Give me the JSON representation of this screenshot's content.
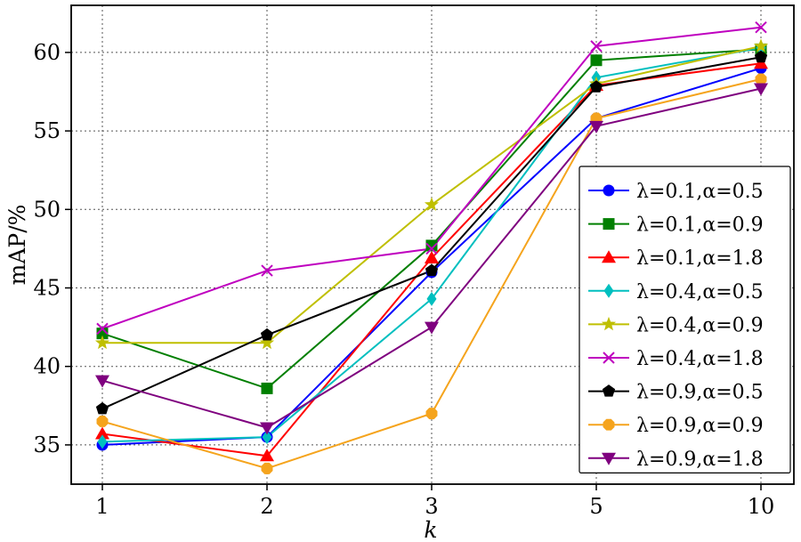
{
  "chart_data": {
    "type": "line",
    "x": [
      "1",
      "2",
      "3",
      "5",
      "10"
    ],
    "xlabel": "k",
    "ylabel": "mAP/%",
    "ylim": [
      32.5,
      63
    ],
    "yticks": [
      35,
      40,
      45,
      50,
      55,
      60
    ],
    "grid": true,
    "legend_position": "right",
    "series": [
      {
        "name": "λ=0.1,α=0.5",
        "color": "#0000ff",
        "marker": "circle",
        "values": [
          35.0,
          35.5,
          46.0,
          55.8,
          59.0
        ]
      },
      {
        "name": "λ=0.1,α=0.9",
        "color": "#007f00",
        "marker": "square",
        "values": [
          42.1,
          38.6,
          47.7,
          59.5,
          60.2
        ]
      },
      {
        "name": "λ=0.1,α=1.8",
        "color": "#ff0000",
        "marker": "triangle-up",
        "values": [
          35.7,
          34.3,
          46.9,
          57.9,
          59.3
        ]
      },
      {
        "name": "λ=0.4,α=0.5",
        "color": "#00bfbf",
        "marker": "diamond",
        "values": [
          35.2,
          35.5,
          44.3,
          58.4,
          60.3
        ]
      },
      {
        "name": "λ=0.4,α=0.9",
        "color": "#bfbf00",
        "marker": "star",
        "values": [
          41.5,
          41.5,
          50.3,
          58.0,
          60.4
        ]
      },
      {
        "name": "λ=0.4,α=1.8",
        "color": "#bf00bf",
        "marker": "x",
        "values": [
          42.4,
          46.1,
          47.5,
          60.4,
          61.6
        ]
      },
      {
        "name": "λ=0.9,α=0.5",
        "color": "#000000",
        "marker": "pentagon",
        "values": [
          37.3,
          42.0,
          46.1,
          57.8,
          59.7
        ]
      },
      {
        "name": "λ=0.9,α=0.9",
        "color": "#f5a41d",
        "marker": "octagon",
        "values": [
          36.5,
          33.5,
          37.0,
          55.8,
          58.3
        ]
      },
      {
        "name": "λ=0.9,α=1.8",
        "color": "#7f007f",
        "marker": "triangle-down",
        "values": [
          39.1,
          36.1,
          42.5,
          55.3,
          57.7
        ]
      }
    ]
  }
}
